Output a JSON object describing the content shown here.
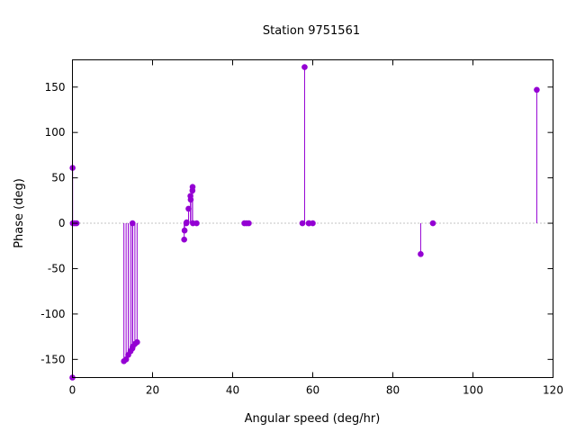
{
  "chart_data": {
    "type": "scatter",
    "style": "impulses-with-points",
    "title": "Station 9751561",
    "xlabel": "Angular speed (deg/hr)",
    "ylabel": "Phase (deg)",
    "xlim": [
      0,
      120
    ],
    "ylim": [
      -170,
      180
    ],
    "xticks": [
      0,
      20,
      40,
      60,
      80,
      100,
      120
    ],
    "yticks": [
      -150,
      -100,
      -50,
      0,
      50,
      100,
      150
    ],
    "zero_line": "dotted",
    "grid": false,
    "color": "#9400d3",
    "series": [
      {
        "x": [
          0.0,
          0.04,
          0.08,
          0.54,
          1.02,
          12.85,
          13.4,
          13.94,
          14.5,
          14.96,
          15.0,
          15.04,
          15.59,
          16.14,
          27.9,
          28.0,
          28.44,
          28.51,
          28.98,
          29.46,
          29.53,
          29.96,
          30.0,
          30.08,
          31.0,
          42.93,
          43.48,
          44.03,
          57.42,
          57.97,
          58.98,
          59.07,
          60.0,
          86.95,
          90.0,
          115.94
        ],
        "y": [
          -170,
          61,
          0,
          0,
          0,
          -152,
          -150,
          -145,
          -141,
          -138,
          0,
          -136,
          -133,
          -131,
          -18,
          -8,
          0,
          1,
          16,
          30,
          26,
          36,
          40,
          0,
          0,
          0,
          0,
          0,
          0,
          172,
          0,
          0,
          0,
          -34,
          0,
          147
        ]
      }
    ]
  }
}
